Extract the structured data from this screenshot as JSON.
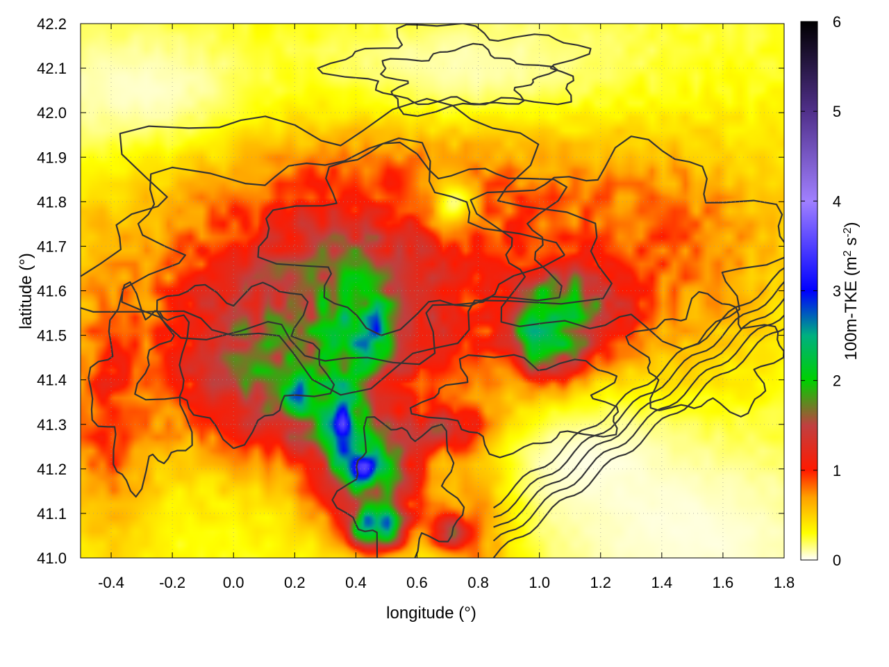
{
  "chart_data": {
    "type": "heatmap",
    "title": "",
    "xlabel": "longitude (°)",
    "ylabel": "latitude (°)",
    "colorbar_label_main": "100m-TKE (m",
    "colorbar_label_sup1": "2",
    "colorbar_label_mid": " s",
    "colorbar_label_sup2": "-2",
    "colorbar_label_end": ")",
    "xlim": [
      -0.5,
      1.8
    ],
    "ylim": [
      41.0,
      42.2
    ],
    "zlim": [
      0,
      6
    ],
    "x_ticks": [
      "-0.4",
      "-0.2",
      "0.0",
      "0.2",
      "0.4",
      "0.6",
      "0.8",
      "1.0",
      "1.2",
      "1.4",
      "1.6",
      "1.8"
    ],
    "x_tick_values": [
      -0.4,
      -0.2,
      0.0,
      0.2,
      0.4,
      0.6,
      0.8,
      1.0,
      1.2,
      1.4,
      1.6,
      1.8
    ],
    "y_ticks": [
      "41.0",
      "41.1",
      "41.2",
      "41.3",
      "41.4",
      "41.5",
      "41.6",
      "41.7",
      "41.8",
      "41.9",
      "42.0",
      "42.1",
      "42.2"
    ],
    "y_tick_values": [
      41.0,
      41.1,
      41.2,
      41.3,
      41.4,
      41.5,
      41.6,
      41.7,
      41.8,
      41.9,
      42.0,
      42.1,
      42.2
    ],
    "colorbar_ticks": [
      "0",
      "1",
      "2",
      "3",
      "4",
      "5",
      "6"
    ],
    "colorbar_tick_values": [
      0,
      1,
      2,
      3,
      4,
      5,
      6
    ],
    "grid": true,
    "colormap": [
      {
        "value": 0.0,
        "color": "#ffffff"
      },
      {
        "value": 0.3,
        "color": "#ffff00"
      },
      {
        "value": 0.7,
        "color": "#ffa000"
      },
      {
        "value": 1.0,
        "color": "#ff1a00"
      },
      {
        "value": 1.5,
        "color": "#c04040"
      },
      {
        "value": 2.0,
        "color": "#00d000"
      },
      {
        "value": 2.5,
        "color": "#00b080"
      },
      {
        "value": 3.0,
        "color": "#0000ff"
      },
      {
        "value": 4.0,
        "color": "#a080ff"
      },
      {
        "value": 5.0,
        "color": "#50308a"
      },
      {
        "value": 6.0,
        "color": "#000000"
      }
    ],
    "tke_features": [
      {
        "lon": 0.35,
        "lat": 41.72,
        "tke": 1.15,
        "sx": 0.5,
        "sy": 0.3
      },
      {
        "lon": 0.7,
        "lat": 41.75,
        "tke": 0.95,
        "sx": 0.35,
        "sy": 0.18
      },
      {
        "lon": 1.35,
        "lat": 41.7,
        "tke": 0.9,
        "sx": 0.35,
        "sy": 0.2
      },
      {
        "lon": 0.05,
        "lat": 41.45,
        "tke": 1.75,
        "sx": 0.18,
        "sy": 0.13
      },
      {
        "lon": 0.25,
        "lat": 41.55,
        "tke": 1.55,
        "sx": 0.15,
        "sy": 0.12
      },
      {
        "lon": 0.4,
        "lat": 41.6,
        "tke": 2.0,
        "sx": 0.12,
        "sy": 0.09
      },
      {
        "lon": 0.45,
        "lat": 41.5,
        "tke": 2.9,
        "sx": 0.08,
        "sy": 0.05
      },
      {
        "lon": 0.3,
        "lat": 41.35,
        "tke": 2.1,
        "sx": 0.12,
        "sy": 0.08
      },
      {
        "lon": 0.45,
        "lat": 41.2,
        "tke": 2.3,
        "sx": 0.12,
        "sy": 0.1
      },
      {
        "lon": 0.2,
        "lat": 41.38,
        "tke": 2.6,
        "sx": 0.05,
        "sy": 0.03
      },
      {
        "lon": 0.35,
        "lat": 41.3,
        "tke": 3.6,
        "sx": 0.03,
        "sy": 0.05
      },
      {
        "lon": 0.43,
        "lat": 41.2,
        "tke": 3.4,
        "sx": 0.04,
        "sy": 0.025
      },
      {
        "lon": 0.47,
        "lat": 41.07,
        "tke": 3.2,
        "sx": 0.06,
        "sy": 0.03
      },
      {
        "lon": 0.72,
        "lat": 41.06,
        "tke": 3.0,
        "sx": 0.05,
        "sy": 0.025
      },
      {
        "lon": 0.72,
        "lat": 41.29,
        "tke": 2.7,
        "sx": 0.07,
        "sy": 0.03
      },
      {
        "lon": 1.02,
        "lat": 41.5,
        "tke": 2.7,
        "sx": 0.08,
        "sy": 0.07
      },
      {
        "lon": 1.1,
        "lat": 41.55,
        "tke": 2.1,
        "sx": 0.12,
        "sy": 0.07
      },
      {
        "lon": 0.63,
        "lat": 41.55,
        "tke": 1.3,
        "sx": 0.08,
        "sy": 0.1
      },
      {
        "lon": -0.4,
        "lat": 41.35,
        "tke": 1.1,
        "sx": 0.1,
        "sy": 0.2
      },
      {
        "lon": 0.8,
        "lat": 41.15,
        "tke": 1.1,
        "sx": 0.1,
        "sy": 0.2
      }
    ],
    "low_tke_features": [
      {
        "lon": -0.3,
        "lat": 42.05,
        "sx": 0.35,
        "sy": 0.12
      },
      {
        "lon": 0.75,
        "lat": 42.1,
        "sx": 0.5,
        "sy": 0.12
      },
      {
        "lon": 1.5,
        "lat": 41.05,
        "sx": 0.4,
        "sy": 0.15
      },
      {
        "lon": 1.15,
        "lat": 41.22,
        "sx": 0.25,
        "sy": 0.1
      },
      {
        "lon": 0.72,
        "lat": 41.8,
        "sx": 0.05,
        "sy": 0.04
      }
    ]
  }
}
